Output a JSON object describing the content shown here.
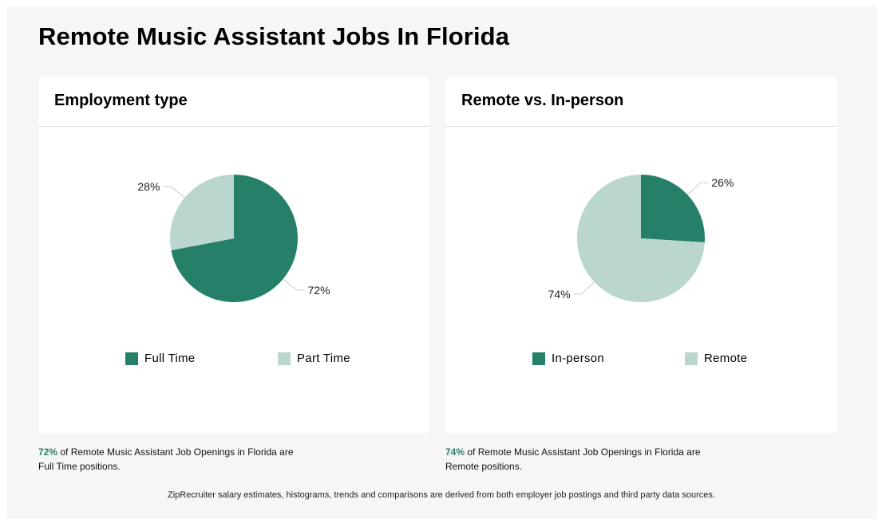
{
  "page": {
    "title": "Remote Music Assistant Jobs In Florida"
  },
  "colors": {
    "dark": "#267f69",
    "light": "#bad6cf",
    "label_line": "#cccccc"
  },
  "chart_data": [
    {
      "type": "pie",
      "title": "Employment type",
      "slices": [
        {
          "label": "Full Time",
          "value": 72,
          "display": "72%",
          "color": "#267f69"
        },
        {
          "label": "Part Time",
          "value": 28,
          "display": "28%",
          "color": "#bad6cf"
        }
      ],
      "legend": "bottom"
    },
    {
      "type": "pie",
      "title": "Remote vs. In-person",
      "slices": [
        {
          "label": "In-person",
          "value": 26,
          "display": "26%",
          "color": "#267f69"
        },
        {
          "label": "Remote",
          "value": 74,
          "display": "74%",
          "color": "#bad6cf"
        }
      ],
      "legend": "bottom"
    }
  ],
  "summaries": [
    {
      "pct": "72%",
      "text": " of Remote Music Assistant Job Openings in Florida are Full Time positions."
    },
    {
      "pct": "74%",
      "text": " of Remote Music Assistant Job Openings in Florida are Remote positions."
    }
  ],
  "footnote": "ZipRecruiter salary estimates, histograms, trends and comparisons are derived from both employer job postings and third party data sources."
}
